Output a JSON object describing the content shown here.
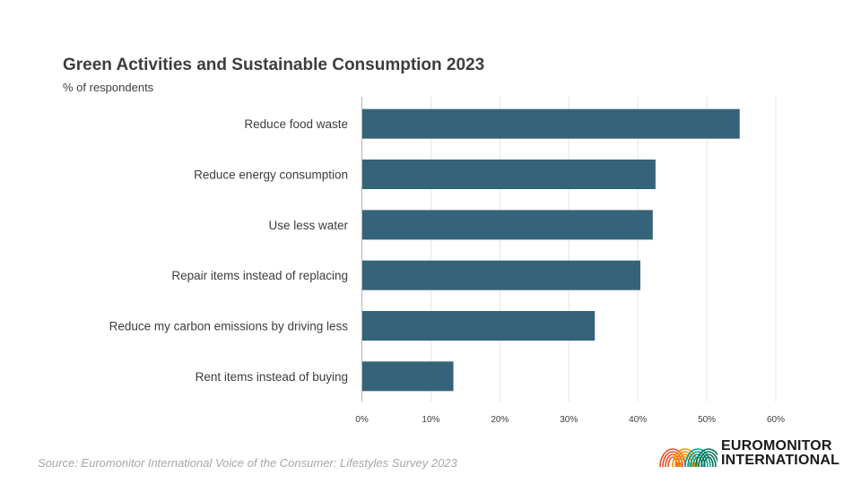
{
  "chart_data": {
    "type": "bar",
    "orientation": "horizontal",
    "title": "Green Activities and Sustainable Consumption 2023",
    "subtitle": "% of respondents",
    "categories": [
      "Reduce food waste",
      "Reduce energy consumption",
      "Use less water",
      "Repair items instead of replacing",
      "Reduce my carbon emissions by driving less",
      "Rent items instead of buying"
    ],
    "values": [
      54.7,
      42.5,
      42.1,
      40.3,
      33.7,
      13.2
    ],
    "xlim": [
      0,
      60
    ],
    "x_ticks": [
      "0%",
      "10%",
      "20%",
      "30%",
      "40%",
      "50%",
      "60%"
    ],
    "grid": "vertical",
    "bar_color": "#35637a"
  },
  "source": "Source: Euromonitor International Voice of the Consumer: Lifestyles Survey 2023",
  "logo": {
    "line1": "EUROMONITOR",
    "line2": "INTERNATIONAL",
    "colors": [
      "#e84e24",
      "#f39200",
      "#00a19a",
      "#0b6e4f"
    ]
  }
}
